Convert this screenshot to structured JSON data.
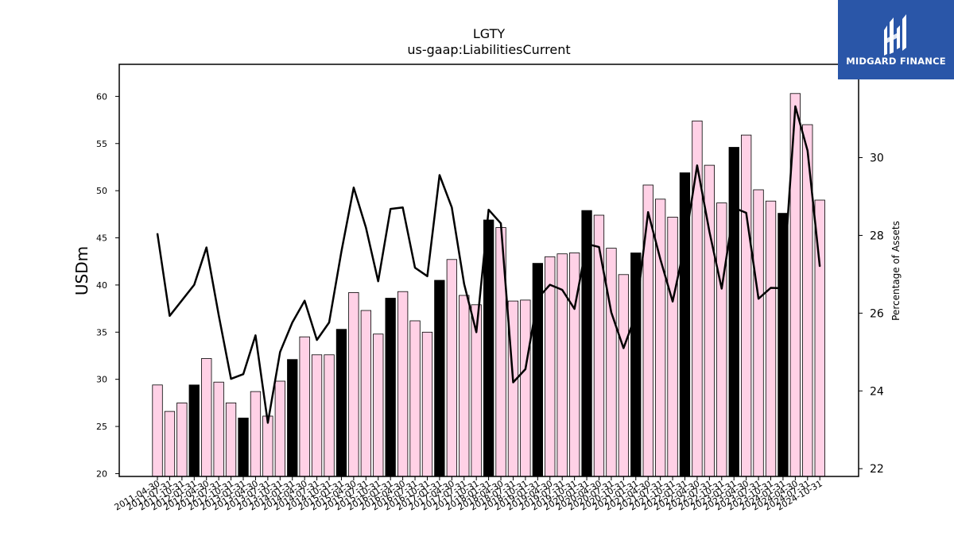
{
  "brand": {
    "name": "MIDGARD FINANCE",
    "bg_color": "#2a56a8"
  },
  "chart_data": {
    "type": "bar",
    "title": "LGTY",
    "subtitle": "us-gaap:LiabilitiesCurrent",
    "ylabel": "USDm",
    "y2label": "Percentage of Assets",
    "ylim": [
      19.7,
      63.4
    ],
    "y2lim": [
      21.8,
      32.4
    ],
    "yticks": [
      20,
      25,
      30,
      35,
      40,
      45,
      50,
      55,
      60
    ],
    "y2ticks": [
      22,
      24,
      26,
      28,
      30
    ],
    "categories": [
      "2011-04-30",
      "2011-07-31",
      "2011-10-31",
      "2012-01-31",
      "2012-04-30",
      "2012-07-31",
      "2012-10-31",
      "2013-01-31",
      "2013-04-30",
      "2013-07-31",
      "2013-10-31",
      "2014-01-31",
      "2014-04-30",
      "2014-07-31",
      "2014-10-31",
      "2015-01-31",
      "2015-04-30",
      "2015-07-31",
      "2015-10-31",
      "2016-01-31",
      "2016-04-30",
      "2016-07-31",
      "2016-10-31",
      "2017-01-31",
      "2017-04-30",
      "2017-07-31",
      "2017-10-31",
      "2018-01-31",
      "2018-04-30",
      "2018-07-31",
      "2018-10-31",
      "2019-01-31",
      "2019-04-30",
      "2019-07-31",
      "2019-10-31",
      "2020-01-31",
      "2020-04-30",
      "2020-07-31",
      "2020-10-31",
      "2021-01-31",
      "2021-04-30",
      "2021-07-31",
      "2021-10-31",
      "2022-01-31",
      "2022-04-30",
      "2022-07-31",
      "2022-10-31",
      "2023-01-31",
      "2023-04-30",
      "2023-07-31",
      "2023-10-31",
      "2024-01-31",
      "2024-04-30",
      "2024-07-31",
      "2024-10-31"
    ],
    "series": [
      {
        "name": "",
        "kind": "bar",
        "axis": "left",
        "values": [
          29.4,
          26.6,
          27.5,
          29.4,
          32.2,
          29.7,
          27.5,
          25.9,
          28.7,
          26.1,
          29.8,
          32.1,
          34.5,
          32.6,
          32.6,
          35.3,
          39.2,
          37.3,
          34.8,
          38.6,
          39.3,
          36.2,
          35.0,
          40.5,
          42.7,
          38.9,
          37.9,
          46.9,
          46.1,
          38.3,
          38.4,
          42.3,
          43.0,
          43.3,
          43.4,
          47.9,
          47.4,
          43.9,
          41.1,
          43.4,
          50.6,
          49.1,
          47.2,
          51.9,
          57.4,
          52.7,
          48.7,
          54.6,
          55.9,
          50.1,
          48.9,
          47.6,
          60.3,
          57.0,
          49.0
        ],
        "highlight": [
          false,
          false,
          false,
          true,
          false,
          false,
          false,
          true,
          false,
          false,
          false,
          true,
          false,
          false,
          false,
          true,
          false,
          false,
          false,
          true,
          false,
          false,
          false,
          true,
          false,
          false,
          false,
          true,
          false,
          false,
          false,
          true,
          false,
          false,
          false,
          true,
          false,
          false,
          false,
          true,
          false,
          false,
          false,
          true,
          false,
          false,
          false,
          true,
          false,
          false,
          false,
          true,
          false,
          false,
          false
        ],
        "color": "#ffd1e6",
        "highlight_color": "#000000"
      },
      {
        "name": "",
        "kind": "line",
        "axis": "right",
        "values": [
          28.05,
          25.93,
          26.33,
          26.73,
          27.69,
          25.95,
          24.31,
          24.43,
          25.43,
          23.18,
          25.0,
          25.76,
          26.32,
          25.31,
          25.76,
          27.58,
          29.23,
          28.2,
          26.82,
          28.68,
          28.72,
          27.17,
          26.95,
          29.55,
          28.72,
          26.75,
          25.51,
          28.66,
          28.31,
          24.22,
          24.56,
          26.38,
          26.73,
          26.6,
          26.11,
          27.78,
          27.7,
          26.02,
          25.1,
          25.96,
          28.6,
          27.39,
          26.3,
          27.78,
          29.8,
          28.09,
          26.63,
          28.71,
          28.58,
          26.37,
          26.65,
          26.64,
          31.32,
          30.18,
          27.2
        ],
        "color": "#000000"
      }
    ],
    "grid": false,
    "legend": "none"
  }
}
